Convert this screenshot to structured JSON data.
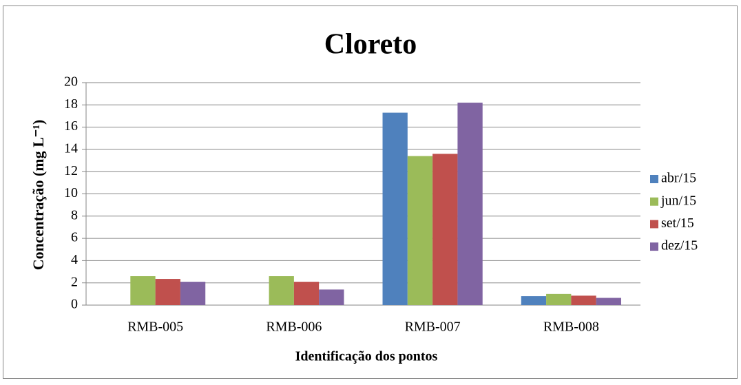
{
  "chart_data": {
    "type": "bar",
    "title": "Cloreto",
    "x_label": "Identificação dos pontos",
    "y_label": "Concentração (mg L⁻¹)",
    "categories": [
      "RMB-005",
      "RMB-006",
      "RMB-007",
      "RMB-008"
    ],
    "series": [
      {
        "name": "abr/15",
        "color": "#4f81bd",
        "values": [
          null,
          null,
          17.3,
          0.8
        ]
      },
      {
        "name": "jun/15",
        "color": "#9bbb59",
        "values": [
          2.6,
          2.6,
          13.4,
          1.0
        ]
      },
      {
        "name": "set/15",
        "color": "#c0504d",
        "values": [
          2.35,
          2.1,
          13.6,
          0.85
        ]
      },
      {
        "name": "dez/15",
        "color": "#8064a2",
        "values": [
          2.1,
          1.4,
          18.2,
          0.65
        ]
      }
    ],
    "ylim": [
      0,
      20
    ],
    "yticks": [
      0,
      2,
      4,
      6,
      8,
      10,
      12,
      14,
      16,
      18,
      20
    ],
    "grid": true,
    "legend": "right"
  }
}
